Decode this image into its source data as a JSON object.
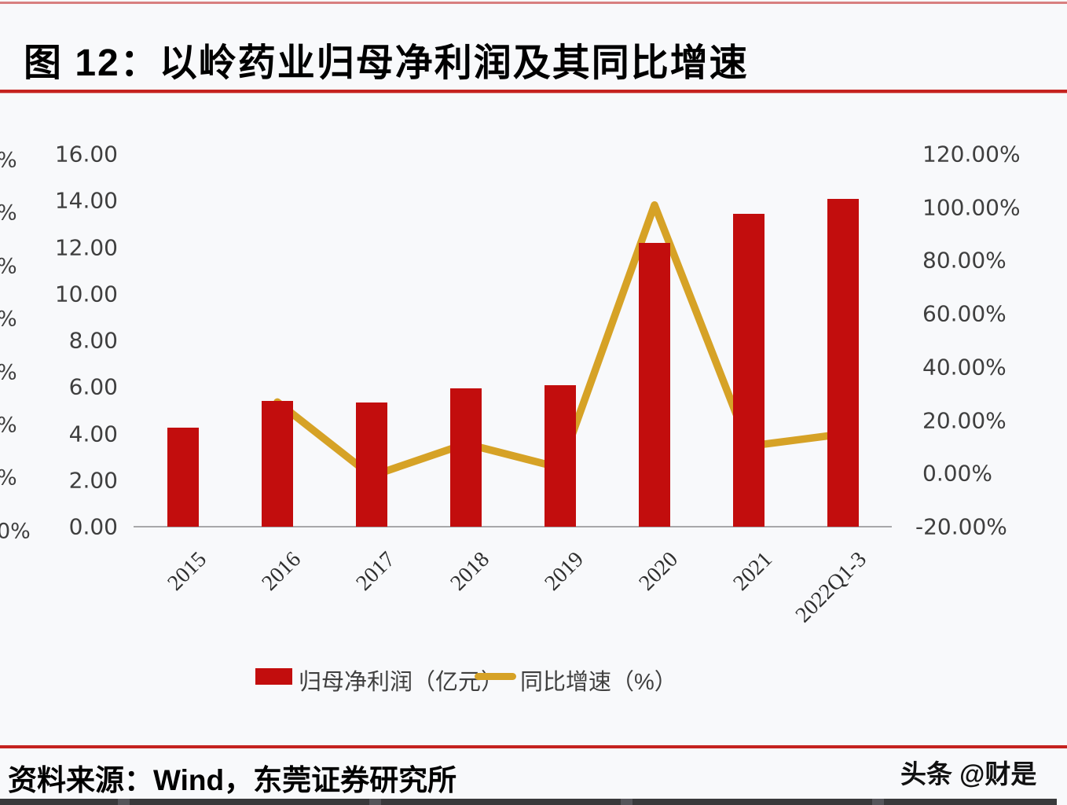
{
  "page": {
    "title": "图 12：以岭药业归母净利润及其同比增速",
    "source_note": "资料来源：Wind，东莞证券研究所",
    "watermark": "头条 @财是"
  },
  "colors": {
    "bar": "#c20d0d",
    "line": "#d6a226",
    "rule_red": "#c5221f",
    "axis_line": "#a8a8aa",
    "axis_text": "#3f3f3f"
  },
  "chart_data": {
    "type": "bar",
    "combo": "bar+line, dual axis",
    "title": "以岭药业归母净利润及其同比增速",
    "categories": [
      "2015",
      "2016",
      "2017",
      "2018",
      "2019",
      "2020",
      "2021",
      "2022Q1-3"
    ],
    "series": [
      {
        "name": "归母净利润（亿元）",
        "type": "bar",
        "axis": "left",
        "color": "#c20d0d",
        "values": [
          4.26,
          5.4,
          5.35,
          5.95,
          6.07,
          12.19,
          13.44,
          14.06
        ]
      },
      {
        "name": "同比增速（%）",
        "type": "line",
        "axis": "right",
        "color": "#d6a226",
        "values": [
          null,
          26.86,
          -0.95,
          11.17,
          2.11,
          100.87,
          10.27,
          14.85
        ]
      }
    ],
    "left_axis": {
      "min": 0,
      "max": 16,
      "step": 2,
      "tick_labels": [
        "16.00",
        "14.00",
        "12.00",
        "10.00",
        "8.00",
        "6.00",
        "4.00",
        "2.00",
        "0.00"
      ]
    },
    "right_axis": {
      "min": -20,
      "max": 120,
      "step": 20,
      "tick_labels": [
        "120.00%",
        "100.00%",
        "80.00%",
        "60.00%",
        "40.00%",
        "20.00%",
        "0.00%",
        "-20.00%"
      ]
    },
    "legend": [
      {
        "label": "归母净利润（亿元）",
        "swatch": "bar"
      },
      {
        "label": "同比增速（%）",
        "swatch": "line"
      }
    ],
    "left_edge_fragments": [
      "%",
      "%",
      "%",
      "%",
      "%",
      "%",
      "%",
      "0%"
    ],
    "grid": "off",
    "legend_position": "bottom"
  }
}
